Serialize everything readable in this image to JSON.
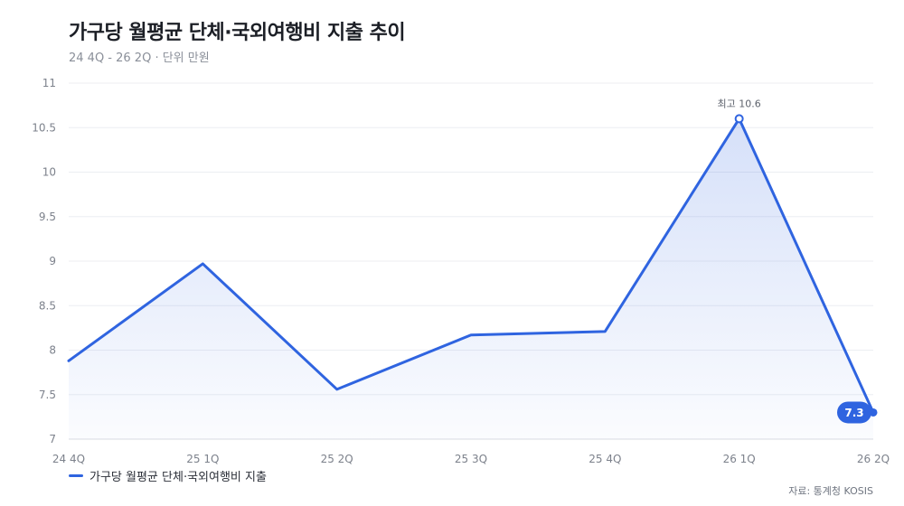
{
  "title": "가구당 월평균 단체·국외여행비 지출 추이",
  "subtitle": "24 4Q - 26 2Q · 단위 만원",
  "source": "자료: 통계청 KOSIS",
  "colors": {
    "line": "#2f64e0",
    "grid": "#eceef2",
    "tick": "#7d828c",
    "badge": "#2f64e0"
  },
  "chart_data": {
    "type": "line",
    "categories": [
      "24 4Q",
      "25 1Q",
      "25 2Q",
      "25 3Q",
      "25 4Q",
      "26 1Q",
      "26 2Q"
    ],
    "series": [
      {
        "name": "가구당 월평균 단체·국외여행비 지출",
        "values": [
          7.88,
          8.97,
          7.56,
          8.17,
          8.21,
          10.6,
          7.3
        ]
      }
    ],
    "ylim": [
      7,
      11
    ],
    "yticks": [
      "7",
      "7.5",
      "8",
      "8.5",
      "9",
      "9.5",
      "10",
      "10.5",
      "11"
    ],
    "grid": true,
    "legend": "bottom-left",
    "annotations": {
      "max_label": "최고 10.6",
      "last_label": "7.3"
    }
  }
}
